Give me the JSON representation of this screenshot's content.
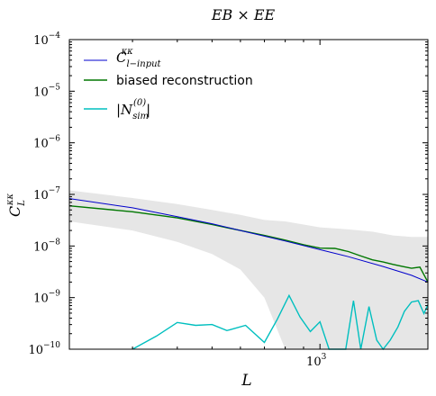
{
  "chart_data": {
    "type": "line",
    "title": "EB × EE",
    "xlabel": "L",
    "ylabel": "C_L^{κκ}",
    "x_scale": "log",
    "y_scale": "log",
    "xlim": [
      200,
      2000
    ],
    "ylim": [
      1e-10,
      0.0001
    ],
    "x_tick_labels": [
      {
        "value": 1000,
        "label": "10^3"
      }
    ],
    "y_tick_labels": [
      {
        "value": 1e-10,
        "label": "10^-10"
      },
      {
        "value": 1e-09,
        "label": "10^-9"
      },
      {
        "value": 1e-08,
        "label": "10^-8"
      },
      {
        "value": 1e-07,
        "label": "10^-7"
      },
      {
        "value": 1e-06,
        "label": "10^-6"
      },
      {
        "value": 1e-05,
        "label": "10^-5"
      },
      {
        "value": 0.0001,
        "label": "10^-4"
      }
    ],
    "legend_position": "top-left",
    "series": [
      {
        "name": "C_{l-input}^{κκ}",
        "color": "#0000cc",
        "x": [
          200,
          300,
          400,
          500,
          600,
          700,
          800,
          1000,
          1200,
          1500,
          1800,
          2000
        ],
        "y": [
          8.3e-08,
          5.5e-08,
          3.7e-08,
          2.7e-08,
          2e-08,
          1.55e-08,
          1.25e-08,
          8.5e-09,
          6.2e-09,
          4e-09,
          2.7e-09,
          2e-09
        ]
      },
      {
        "name": "biased reconstruction",
        "color": "#007700",
        "x": [
          200,
          300,
          400,
          500,
          600,
          700,
          800,
          900,
          1000,
          1100,
          1200,
          1300,
          1400,
          1500,
          1600,
          1700,
          1800,
          1900,
          2000
        ],
        "y": [
          6e-08,
          4.6e-08,
          3.5e-08,
          2.6e-08,
          2e-08,
          1.6e-08,
          1.3e-08,
          1.06e-08,
          9.1e-09,
          9e-09,
          7.8e-09,
          6.4e-09,
          5.4e-09,
          4.9e-09,
          4.4e-09,
          4e-09,
          3.7e-09,
          3.9e-09,
          2e-09
        ]
      },
      {
        "name": "|N_sim^{(0)}|",
        "color": "#00bfbf",
        "x": [
          300,
          350,
          400,
          450,
          500,
          550,
          620,
          700,
          760,
          820,
          880,
          940,
          1000,
          1060,
          1120,
          1180,
          1240,
          1300,
          1370,
          1440,
          1500,
          1570,
          1650,
          1720,
          1800,
          1880,
          1950,
          2000
        ],
        "y": [
          1e-10,
          1.8e-10,
          3.3e-10,
          2.9e-10,
          3e-10,
          2.3e-10,
          2.9e-10,
          1.35e-10,
          3.8e-10,
          1.1e-09,
          4.2e-10,
          2.2e-10,
          3.4e-10,
          1e-10,
          1e-10,
          1e-10,
          8.7e-10,
          1e-10,
          6.7e-10,
          1.5e-10,
          1e-10,
          1.5e-10,
          2.7e-10,
          5.4e-10,
          8.2e-10,
          8.7e-10,
          4.9e-10,
          7.3e-10
        ]
      }
    ],
    "band": {
      "color": "#e6e6e6",
      "x": [
        200,
        300,
        400,
        500,
        600,
        700,
        800,
        900,
        1000,
        1200,
        1400,
        1600,
        1800,
        2000
      ],
      "upper": [
        1.2e-07,
        8.5e-08,
        6.5e-08,
        5e-08,
        4e-08,
        3.2e-08,
        3e-08,
        2.6e-08,
        2.3e-08,
        2.1e-08,
        1.9e-08,
        1.6e-08,
        1.5e-08,
        1.5e-08
      ],
      "lower": [
        3e-08,
        2e-08,
        1.2e-08,
        7e-09,
        3.5e-09,
        1e-09,
        1e-10,
        1e-10,
        1e-10,
        1e-10,
        1e-10,
        1e-10,
        1e-10,
        1e-10
      ]
    }
  }
}
